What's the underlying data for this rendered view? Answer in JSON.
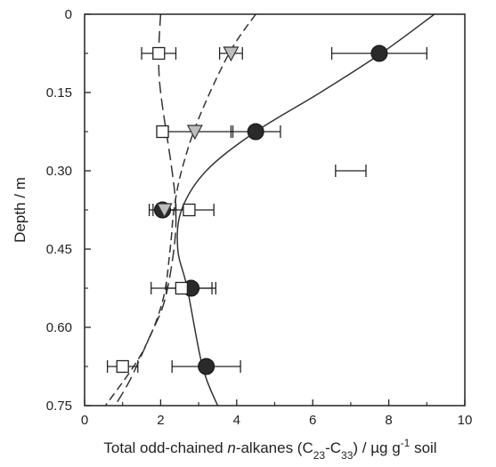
{
  "chart_data": {
    "type": "scatter",
    "title": "",
    "orientation": "depth-profile",
    "xlabel": {
      "prefix": "Total odd-chained ",
      "italic": "n",
      "mid": "-alkanes (C",
      "sub1": "23",
      "dash": "-C",
      "sub2": "33",
      "post": ") / µg g",
      "sup": "-1",
      "suffix": " soil"
    },
    "ylabel": "Depth / m",
    "xlim": [
      0,
      10
    ],
    "ylim": [
      0,
      0.75
    ],
    "y_inverted": true,
    "x_ticks": [
      "0",
      "2",
      "4",
      "6",
      "8",
      "10"
    ],
    "y_ticks": [
      "0",
      "0.15",
      "0.30",
      "0.45",
      "0.60",
      "0.75"
    ],
    "grid": false,
    "series": [
      {
        "marker": "circle-filled",
        "color": "#2a2a2a",
        "points": [
          {
            "x": 7.75,
            "y": 0.075,
            "xerr": 1.25
          },
          {
            "x": 4.5,
            "y": 0.225,
            "xerr": 0.65
          },
          {
            "x": 2.05,
            "y": 0.375,
            "xerr": 0.35
          },
          {
            "x": 2.8,
            "y": 0.525,
            "xerr": 0.65
          },
          {
            "x": 3.2,
            "y": 0.675,
            "xerr": 0.9
          }
        ],
        "fit": {
          "style": "solid",
          "x": [
            9.2,
            7.8,
            6.2,
            4.5,
            3.2,
            2.55,
            2.45,
            2.7,
            3.1,
            3.5
          ],
          "y": [
            0.0,
            0.075,
            0.15,
            0.225,
            0.3,
            0.375,
            0.45,
            0.525,
            0.675,
            0.75
          ]
        }
      },
      {
        "marker": "triangle-down",
        "color": "#bdbdbd",
        "points": [
          {
            "x": 3.85,
            "y": 0.075,
            "xerr": 0.3
          },
          {
            "x": 2.9,
            "y": 0.225,
            "xerr": 1.0
          },
          {
            "x": 2.1,
            "y": 0.375,
            "xerr": 0.3
          }
        ],
        "fit": {
          "style": "dashed",
          "x": [
            4.5,
            3.8,
            3.0,
            2.55,
            2.35,
            2.25,
            2.05,
            1.5,
            0.55
          ],
          "y": [
            0.0,
            0.075,
            0.2,
            0.3,
            0.375,
            0.45,
            0.55,
            0.65,
            0.75
          ]
        }
      },
      {
        "marker": "square-open",
        "color": "#ffffff",
        "points": [
          {
            "x": 1.95,
            "y": 0.075,
            "xerr": 0.45
          },
          {
            "x": 2.05,
            "y": 0.225,
            "xerr": 0.15
          },
          {
            "x": 2.75,
            "y": 0.375,
            "xerr": 0.65
          },
          {
            "x": 2.55,
            "y": 0.525,
            "xerr": 0.8
          },
          {
            "x": 1.0,
            "y": 0.675,
            "xerr": 0.4
          }
        ],
        "fit": {
          "style": "longdash",
          "x": [
            2.0,
            1.95,
            2.0,
            2.3,
            2.4,
            2.35,
            2.1,
            1.7,
            1.2,
            0.8
          ],
          "y": [
            0.0,
            0.075,
            0.15,
            0.3,
            0.375,
            0.45,
            0.55,
            0.62,
            0.7,
            0.75
          ]
        }
      }
    ],
    "extra_errorbar": {
      "x": 7.0,
      "y": 0.3,
      "xerr": 0.4
    }
  }
}
